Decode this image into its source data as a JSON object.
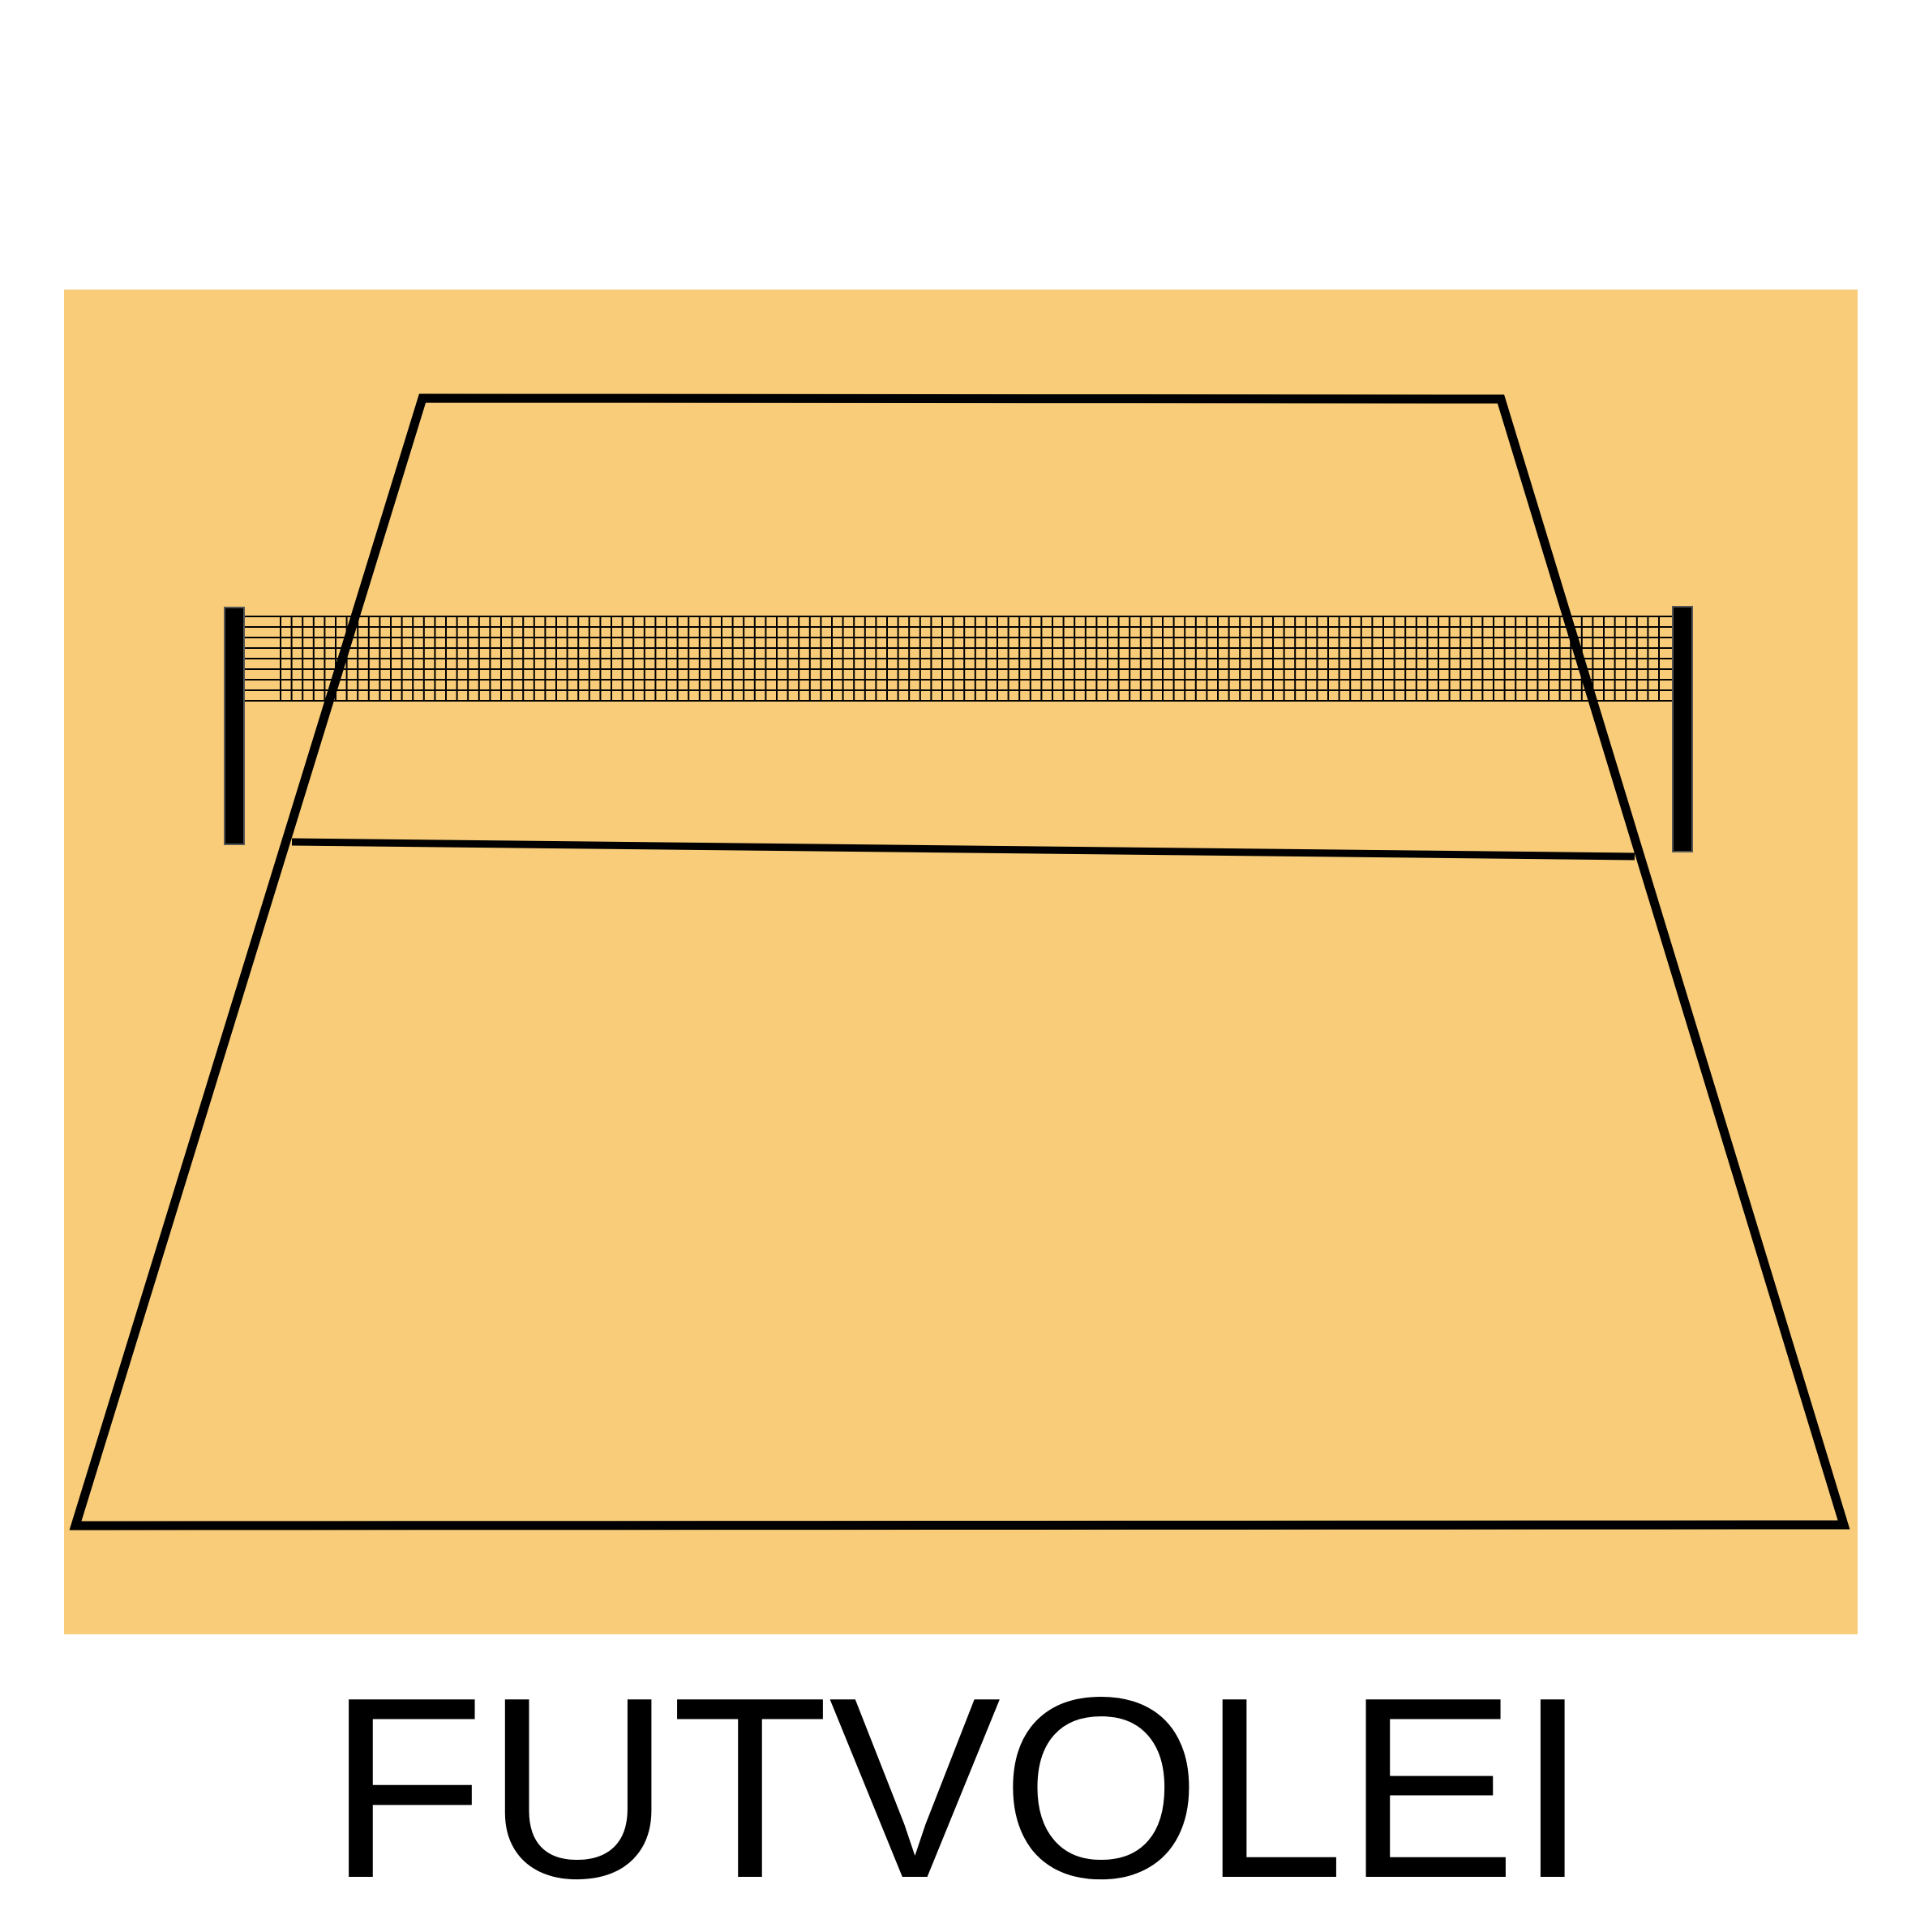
{
  "caption": "FUTVOLEI",
  "colors": {
    "sand": "#F9CC79",
    "lines": "#000000",
    "background": "#FFFFFF"
  },
  "diagram": {
    "elements": [
      "sand-area",
      "court-boundary",
      "net-mesh",
      "left-net-post",
      "right-net-post",
      "center-line"
    ]
  }
}
